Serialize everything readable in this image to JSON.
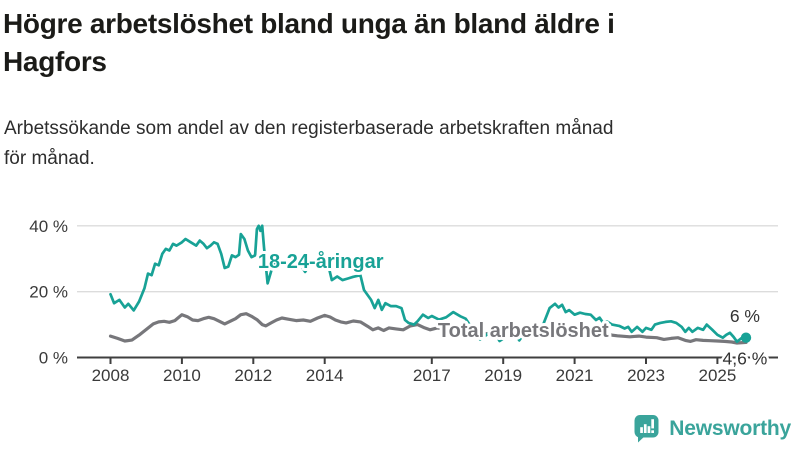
{
  "header": {
    "title_lines": [
      "Högre arbetslöshet bland unga än bland äldre i",
      "Hagfors"
    ],
    "subtitle_lines": [
      "Arbetssökande som andel av den registerbaserade arbetskraften månad",
      "för månad."
    ]
  },
  "chart_data": {
    "type": "line",
    "title": "Högre arbetslöshet bland unga än bland äldre i Hagfors",
    "subtitle": "Arbetssökande som andel av den registerbaserade arbetskraften månad för månad.",
    "unit": "%",
    "grid": "horizontal",
    "x_axis": {
      "ticks": [
        2008,
        2010,
        2012,
        2014,
        2017,
        2019,
        2021,
        2023,
        2025
      ],
      "tick_labels": [
        "2008",
        "2010",
        "2012",
        "2014",
        "2017",
        "2019",
        "2021",
        "2023",
        "2025"
      ],
      "range_years": [
        2007.1,
        2026.7
      ]
    },
    "y_axis": {
      "ticks": [
        0,
        20,
        40
      ],
      "tick_labels": [
        "0 %",
        "20 %",
        "40 %"
      ],
      "range": [
        0,
        42
      ]
    },
    "series": [
      {
        "id": "youth",
        "name": "18-24-åringar",
        "color": "#18a296",
        "width": 2.7,
        "end_dot": true,
        "label": {
          "x_year": 2012.13,
          "y_value": 27.2
        },
        "end_label": {
          "text": "6 %",
          "x_year": 2025.77,
          "y_value": 10.8
        },
        "points": [
          [
            2008.0,
            19.2
          ],
          [
            2008.1,
            16.5
          ],
          [
            2008.25,
            17.5
          ],
          [
            2008.4,
            15.2
          ],
          [
            2008.5,
            16.3
          ],
          [
            2008.65,
            14.3
          ],
          [
            2008.8,
            17.0
          ],
          [
            2008.95,
            21.0
          ],
          [
            2009.05,
            25.5
          ],
          [
            2009.15,
            25.0
          ],
          [
            2009.25,
            28.5
          ],
          [
            2009.35,
            28.0
          ],
          [
            2009.45,
            31.5
          ],
          [
            2009.55,
            33.0
          ],
          [
            2009.65,
            32.5
          ],
          [
            2009.75,
            34.5
          ],
          [
            2009.85,
            34.0
          ],
          [
            2010.0,
            35.0
          ],
          [
            2010.1,
            36.0
          ],
          [
            2010.25,
            35.0
          ],
          [
            2010.4,
            34.0
          ],
          [
            2010.5,
            35.5
          ],
          [
            2010.6,
            34.6
          ],
          [
            2010.7,
            33.2
          ],
          [
            2010.8,
            34.0
          ],
          [
            2010.9,
            35.0
          ],
          [
            2011.0,
            34.5
          ],
          [
            2011.1,
            31.5
          ],
          [
            2011.2,
            27.2
          ],
          [
            2011.3,
            27.6
          ],
          [
            2011.4,
            31.0
          ],
          [
            2011.5,
            30.5
          ],
          [
            2011.6,
            31.2
          ],
          [
            2011.65,
            37.5
          ],
          [
            2011.75,
            36.0
          ],
          [
            2011.85,
            32.5
          ],
          [
            2011.95,
            30.5
          ],
          [
            2012.05,
            31.0
          ],
          [
            2012.1,
            39.0
          ],
          [
            2012.15,
            40.0
          ],
          [
            2012.2,
            38.5
          ],
          [
            2012.25,
            40.0
          ],
          [
            2012.3,
            33.5
          ],
          [
            2012.4,
            22.5
          ],
          [
            2012.55,
            28.0
          ],
          [
            2012.7,
            30.0
          ],
          [
            2012.85,
            29.0
          ],
          [
            2013.0,
            30.0
          ],
          [
            2013.15,
            29.0
          ],
          [
            2013.3,
            28.5
          ],
          [
            2013.45,
            26.0
          ],
          [
            2013.6,
            28.5
          ],
          [
            2013.75,
            29.2
          ],
          [
            2013.9,
            28.6
          ],
          [
            2014.1,
            28.0
          ],
          [
            2014.2,
            23.5
          ],
          [
            2014.35,
            24.6
          ],
          [
            2014.5,
            23.5
          ],
          [
            2014.65,
            24.0
          ],
          [
            2014.8,
            24.5
          ],
          [
            2015.0,
            25.0
          ],
          [
            2015.1,
            20.5
          ],
          [
            2015.3,
            17.5
          ],
          [
            2015.4,
            15.0
          ],
          [
            2015.5,
            17.5
          ],
          [
            2015.6,
            14.5
          ],
          [
            2015.7,
            16.5
          ],
          [
            2015.85,
            15.6
          ],
          [
            2016.0,
            15.6
          ],
          [
            2016.15,
            15.0
          ],
          [
            2016.25,
            11.4
          ],
          [
            2016.35,
            10.5
          ],
          [
            2016.5,
            10.0
          ],
          [
            2016.6,
            11.0
          ],
          [
            2016.75,
            13.0
          ],
          [
            2016.9,
            12.0
          ],
          [
            2017.0,
            12.6
          ],
          [
            2017.2,
            11.5
          ],
          [
            2017.4,
            12.2
          ],
          [
            2017.6,
            13.8
          ],
          [
            2017.8,
            12.5
          ],
          [
            2017.95,
            11.8
          ],
          [
            2018.15,
            8.5
          ],
          [
            2018.35,
            5.5
          ],
          [
            2018.55,
            7.0
          ],
          [
            2018.7,
            8.6
          ],
          [
            2018.9,
            5.0
          ],
          [
            2019.1,
            6.5
          ],
          [
            2019.25,
            8.3
          ],
          [
            2019.45,
            5.2
          ],
          [
            2019.6,
            7.5
          ],
          [
            2019.75,
            9.0
          ],
          [
            2019.9,
            5.8
          ],
          [
            2020.1,
            9.5
          ],
          [
            2020.3,
            15.0
          ],
          [
            2020.45,
            16.3
          ],
          [
            2020.55,
            15.2
          ],
          [
            2020.65,
            16.0
          ],
          [
            2020.75,
            13.8
          ],
          [
            2020.85,
            14.4
          ],
          [
            2021.0,
            13.0
          ],
          [
            2021.15,
            13.6
          ],
          [
            2021.3,
            13.2
          ],
          [
            2021.45,
            13.0
          ],
          [
            2021.6,
            11.4
          ],
          [
            2021.7,
            12.1
          ],
          [
            2021.8,
            10.5
          ],
          [
            2021.9,
            11.0
          ],
          [
            2022.05,
            10.0
          ],
          [
            2022.25,
            9.6
          ],
          [
            2022.4,
            8.8
          ],
          [
            2022.5,
            9.3
          ],
          [
            2022.6,
            7.8
          ],
          [
            2022.75,
            9.3
          ],
          [
            2022.9,
            7.8
          ],
          [
            2023.0,
            9.0
          ],
          [
            2023.15,
            8.4
          ],
          [
            2023.25,
            10.0
          ],
          [
            2023.4,
            10.5
          ],
          [
            2023.55,
            10.8
          ],
          [
            2023.7,
            11.0
          ],
          [
            2023.85,
            10.5
          ],
          [
            2024.0,
            9.3
          ],
          [
            2024.1,
            7.8
          ],
          [
            2024.2,
            9.0
          ],
          [
            2024.3,
            7.8
          ],
          [
            2024.45,
            9.0
          ],
          [
            2024.6,
            8.4
          ],
          [
            2024.7,
            10.0
          ],
          [
            2024.85,
            8.5
          ],
          [
            2025.0,
            6.9
          ],
          [
            2025.15,
            6.0
          ],
          [
            2025.25,
            6.9
          ],
          [
            2025.35,
            7.5
          ],
          [
            2025.45,
            6.3
          ],
          [
            2025.55,
            4.8
          ],
          [
            2025.7,
            6.1
          ],
          [
            2025.8,
            6.0
          ]
        ]
      },
      {
        "id": "total",
        "name": "Total arbetslöshet",
        "color": "#77777b",
        "width": 3.2,
        "end_dot": false,
        "label": {
          "x_year": 2017.17,
          "y_value": 6.2
        },
        "end_label": {
          "text": "4,6 %",
          "x_year": 2025.77,
          "y_value": -2.1
        },
        "points": [
          [
            2008.0,
            6.5
          ],
          [
            2008.2,
            5.8
          ],
          [
            2008.4,
            5.0
          ],
          [
            2008.6,
            5.3
          ],
          [
            2008.8,
            6.8
          ],
          [
            2009.0,
            8.5
          ],
          [
            2009.2,
            10.2
          ],
          [
            2009.35,
            10.8
          ],
          [
            2009.5,
            11.0
          ],
          [
            2009.65,
            10.7
          ],
          [
            2009.8,
            11.2
          ],
          [
            2010.0,
            13.0
          ],
          [
            2010.15,
            12.4
          ],
          [
            2010.3,
            11.4
          ],
          [
            2010.45,
            11.2
          ],
          [
            2010.6,
            11.8
          ],
          [
            2010.75,
            12.2
          ],
          [
            2010.9,
            11.8
          ],
          [
            2011.05,
            11.0
          ],
          [
            2011.2,
            10.2
          ],
          [
            2011.35,
            11.0
          ],
          [
            2011.5,
            11.8
          ],
          [
            2011.65,
            13.0
          ],
          [
            2011.8,
            13.3
          ],
          [
            2011.95,
            12.5
          ],
          [
            2012.1,
            11.5
          ],
          [
            2012.25,
            10.0
          ],
          [
            2012.35,
            9.6
          ],
          [
            2012.5,
            10.5
          ],
          [
            2012.65,
            11.4
          ],
          [
            2012.8,
            12.0
          ],
          [
            2013.0,
            11.6
          ],
          [
            2013.2,
            11.2
          ],
          [
            2013.4,
            11.4
          ],
          [
            2013.6,
            11.0
          ],
          [
            2013.8,
            12.0
          ],
          [
            2014.0,
            12.8
          ],
          [
            2014.15,
            12.3
          ],
          [
            2014.3,
            11.4
          ],
          [
            2014.45,
            10.8
          ],
          [
            2014.6,
            10.5
          ],
          [
            2014.8,
            11.1
          ],
          [
            2015.0,
            10.8
          ],
          [
            2015.2,
            9.5
          ],
          [
            2015.35,
            8.4
          ],
          [
            2015.5,
            9.0
          ],
          [
            2015.65,
            8.2
          ],
          [
            2015.8,
            9.0
          ],
          [
            2016.0,
            8.7
          ],
          [
            2016.2,
            8.4
          ],
          [
            2016.4,
            9.6
          ],
          [
            2016.6,
            10.0
          ],
          [
            2016.8,
            9.0
          ],
          [
            2016.95,
            8.4
          ],
          [
            2017.15,
            9.0
          ],
          [
            2017.4,
            8.6
          ],
          [
            2017.7,
            8.2
          ],
          [
            2018.0,
            7.8
          ],
          [
            2018.3,
            7.4
          ],
          [
            2018.6,
            7.2
          ],
          [
            2019.0,
            7.0
          ],
          [
            2019.4,
            6.9
          ],
          [
            2019.8,
            7.3
          ],
          [
            2020.1,
            8.2
          ],
          [
            2020.4,
            9.0
          ],
          [
            2020.7,
            9.2
          ],
          [
            2021.0,
            8.6
          ],
          [
            2021.3,
            8.0
          ],
          [
            2021.6,
            7.4
          ],
          [
            2021.9,
            7.0
          ],
          [
            2022.2,
            6.6
          ],
          [
            2022.55,
            6.3
          ],
          [
            2022.8,
            6.5
          ],
          [
            2023.0,
            6.2
          ],
          [
            2023.3,
            6.0
          ],
          [
            2023.5,
            5.5
          ],
          [
            2023.7,
            5.8
          ],
          [
            2023.9,
            6.0
          ],
          [
            2024.1,
            5.2
          ],
          [
            2024.25,
            4.9
          ],
          [
            2024.4,
            5.4
          ],
          [
            2024.6,
            5.2
          ],
          [
            2024.8,
            5.1
          ],
          [
            2025.0,
            5.0
          ],
          [
            2025.2,
            4.9
          ],
          [
            2025.4,
            4.7
          ],
          [
            2025.55,
            4.4
          ],
          [
            2025.8,
            4.6
          ]
        ]
      }
    ]
  },
  "branding": {
    "logo_text": "Newsworthy",
    "logo_color": "#3aa49b",
    "logo_icon": "bar-chart-speech-bubble-icon"
  }
}
